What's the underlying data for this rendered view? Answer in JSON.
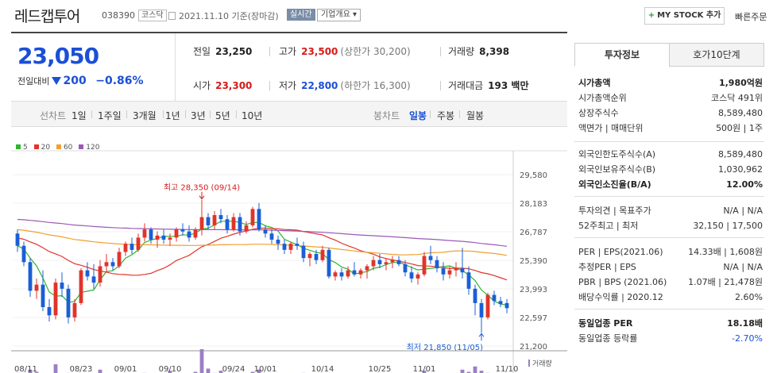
{
  "header": {
    "name": "레드캡투어",
    "code": "038390",
    "market": "코스닥",
    "date": "2021.11.10 기준(장마감)",
    "realtime": "실시간",
    "overview": "기업개요 ▾",
    "mystock": "MY STOCK 추가",
    "quick_order": "빠른주문"
  },
  "quote": {
    "price": "23,050",
    "change_label": "전일대비",
    "change_value": "200",
    "change_pct": "−0.86%",
    "prev_close_label": "전일",
    "prev_close": "23,250",
    "high_label": "고가",
    "high": "23,500",
    "upper_limit": "(상한가 30,200)",
    "volume_label": "거래량",
    "volume": "8,398",
    "open_label": "시가",
    "open": "23,300",
    "low_label": "저가",
    "low": "22,800",
    "lower_limit": "(하한가 16,300)",
    "amount_label": "거래대금",
    "amount": "193 백만"
  },
  "toolbar": {
    "line_label": "선차트",
    "periods": [
      "1일",
      "1주일",
      "3개월",
      "1년",
      "3년",
      "5년",
      "10년"
    ],
    "candle_label": "봉차트",
    "candles": [
      "일봉",
      "주봉",
      "월봉"
    ],
    "active_candle": "일봉"
  },
  "chart_data": {
    "type": "candlestick",
    "legend": [
      "5",
      "20",
      "60",
      "120"
    ],
    "colors": {
      "ma5": "#2db52d",
      "ma20": "#e0342a",
      "ma60": "#f0a030",
      "ma120": "#9b59b6",
      "up": "#e0342a",
      "down": "#1a5fd6",
      "volume": "#9b7fc4"
    },
    "yticks": [
      "29,580",
      "28,183",
      "26,787",
      "25,390",
      "23,993",
      "22,597",
      "21,200"
    ],
    "ylim": [
      21200,
      29580
    ],
    "xticks": [
      "08/11",
      "08/23",
      "09/01",
      "09/10",
      "09/24",
      "10/01",
      "10/14",
      "10/25",
      "11/01",
      "11/10"
    ],
    "max_label": "최고 28,350 (09/14)",
    "min_label": "최저 21,850 (11/05)",
    "volume_label": "거래량",
    "candles": [
      [
        26700,
        26900,
        25800,
        26100
      ],
      [
        26100,
        26300,
        25100,
        25300
      ],
      [
        25300,
        25500,
        23600,
        23900
      ],
      [
        23900,
        24500,
        23500,
        24200
      ],
      [
        24200,
        24900,
        22900,
        23100
      ],
      [
        23100,
        23500,
        22400,
        22700
      ],
      [
        22700,
        24500,
        22500,
        24300
      ],
      [
        24300,
        24800,
        23600,
        24000
      ],
      [
        24000,
        24200,
        22300,
        22600
      ],
      [
        22600,
        23500,
        22400,
        23300
      ],
      [
        23300,
        25000,
        23200,
        24900
      ],
      [
        24900,
        25300,
        24400,
        24600
      ],
      [
        24600,
        25200,
        24000,
        24300
      ],
      [
        24300,
        25400,
        24100,
        25100
      ],
      [
        25100,
        25700,
        24800,
        25300
      ],
      [
        25300,
        25500,
        24900,
        25100
      ],
      [
        25100,
        26000,
        25000,
        25800
      ],
      [
        25800,
        26300,
        25600,
        26200
      ],
      [
        26200,
        26500,
        25700,
        25900
      ],
      [
        25900,
        26700,
        25800,
        26500
      ],
      [
        26500,
        27200,
        26300,
        26900
      ],
      [
        26900,
        27000,
        26200,
        26400
      ],
      [
        26400,
        26800,
        26000,
        26600
      ],
      [
        26600,
        26900,
        26200,
        26400
      ],
      [
        26400,
        26700,
        26100,
        26500
      ],
      [
        26500,
        27000,
        26300,
        26900
      ],
      [
        26900,
        27200,
        26600,
        26800
      ],
      [
        26800,
        27100,
        26300,
        26500
      ],
      [
        26500,
        27000,
        26400,
        26900
      ],
      [
        26900,
        28350,
        26600,
        27500
      ],
      [
        27500,
        27700,
        26900,
        27100
      ],
      [
        27100,
        27800,
        26900,
        27600
      ],
      [
        27600,
        27900,
        27200,
        27400
      ],
      [
        27400,
        27600,
        26700,
        26900
      ],
      [
        26900,
        27700,
        26800,
        27500
      ],
      [
        27500,
        27700,
        26600,
        26800
      ],
      [
        26800,
        27300,
        26700,
        27100
      ],
      [
        27100,
        28000,
        27000,
        27900
      ],
      [
        27900,
        28200,
        26800,
        26900
      ],
      [
        26900,
        27100,
        26500,
        26700
      ],
      [
        26700,
        26900,
        26200,
        26400
      ],
      [
        26400,
        26600,
        25900,
        26200
      ],
      [
        26200,
        26400,
        25700,
        25900
      ],
      [
        25900,
        26300,
        25700,
        26200
      ],
      [
        26200,
        26500,
        25900,
        26100
      ],
      [
        26100,
        26300,
        25300,
        25500
      ],
      [
        25500,
        25800,
        25100,
        25700
      ],
      [
        25700,
        25900,
        25200,
        25400
      ],
      [
        25400,
        26100,
        25300,
        25900
      ],
      [
        25900,
        26000,
        24500,
        24600
      ],
      [
        24600,
        24900,
        24400,
        24800
      ],
      [
        24800,
        25000,
        24400,
        24600
      ],
      [
        24600,
        25100,
        24500,
        24900
      ],
      [
        24900,
        25300,
        24600,
        24700
      ],
      [
        24700,
        25000,
        24500,
        24900
      ],
      [
        24900,
        25200,
        24500,
        25100
      ],
      [
        25100,
        25600,
        24900,
        25400
      ],
      [
        25400,
        25700,
        25000,
        25200
      ],
      [
        25200,
        25500,
        24900,
        25300
      ],
      [
        25300,
        25600,
        25000,
        25400
      ],
      [
        25400,
        25600,
        25100,
        25200
      ],
      [
        25200,
        25400,
        24600,
        24800
      ],
      [
        24800,
        25100,
        24300,
        24500
      ],
      [
        24500,
        24800,
        24200,
        24700
      ],
      [
        24700,
        25800,
        24600,
        25600
      ],
      [
        25600,
        26100,
        25200,
        25400
      ],
      [
        25400,
        25600,
        24800,
        25000
      ],
      [
        25000,
        25300,
        24400,
        24700
      ],
      [
        24700,
        25100,
        24500,
        24900
      ],
      [
        24900,
        25300,
        24600,
        25000
      ],
      [
        25000,
        26000,
        24500,
        24800
      ],
      [
        24800,
        25100,
        23700,
        24000
      ],
      [
        24000,
        24200,
        22700,
        23300
      ],
      [
        23300,
        23500,
        21850,
        22600
      ],
      [
        22600,
        23800,
        22500,
        23700
      ],
      [
        23700,
        23900,
        23200,
        23400
      ],
      [
        23400,
        23600,
        23100,
        23250
      ],
      [
        23300,
        23500,
        22800,
        23050
      ]
    ],
    "volumes": [
      6,
      5,
      9,
      7,
      4,
      5,
      14,
      5,
      6,
      4,
      3,
      4,
      5,
      9,
      4,
      3,
      4,
      3,
      5,
      4,
      6,
      3,
      4,
      3,
      8,
      4,
      3,
      5,
      7,
      28,
      10,
      6,
      8,
      5,
      6,
      5,
      4,
      7,
      9,
      5,
      4,
      3,
      5,
      4,
      3,
      6,
      4,
      3,
      4,
      5,
      3,
      4,
      3,
      5,
      4,
      3,
      5,
      4,
      3,
      4,
      3,
      5,
      4,
      3,
      8,
      5,
      4,
      3,
      4,
      3,
      9,
      7,
      12,
      8,
      6,
      4,
      3,
      3
    ]
  },
  "side": {
    "tabs": [
      "투자정보",
      "호가10단계"
    ],
    "rows1": [
      {
        "l": "시가총액",
        "r": "1,980억원"
      },
      {
        "l": "시가총액순위",
        "r": "코스닥 491위"
      },
      {
        "l": "상장주식수",
        "r": "8,589,480"
      },
      {
        "l": "액면가 | 매매단위",
        "r": "500원 | 1주"
      }
    ],
    "rows2": [
      {
        "l": "외국인한도주식수(A)",
        "r": "8,589,480"
      },
      {
        "l": "외국인보유주식수(B)",
        "r": "1,030,962"
      },
      {
        "l": "외국인소진율(B/A)",
        "r": "12.00%"
      }
    ],
    "rows3": [
      {
        "l": "투자의견 | 목표주가",
        "r": "N/A | N/A"
      },
      {
        "l": "52주최고 | 최저",
        "r": "32,150 | 17,500"
      }
    ],
    "rows4": [
      {
        "l": "PER | EPS(2021.06)",
        "r": "14.33배 | 1,608원"
      },
      {
        "l": "추정PER | EPS",
        "r": "N/A | N/A"
      },
      {
        "l": "PBR | BPS (2021.06)",
        "r": "1.07배 | 21,478원"
      },
      {
        "l": "배당수익률 | 2020.12",
        "r": "2.60%"
      }
    ],
    "rows5": [
      {
        "l": "동일업종 PER",
        "r": "18.18배"
      },
      {
        "l": "동일업종 등락률",
        "r": "-2.70%"
      }
    ]
  }
}
